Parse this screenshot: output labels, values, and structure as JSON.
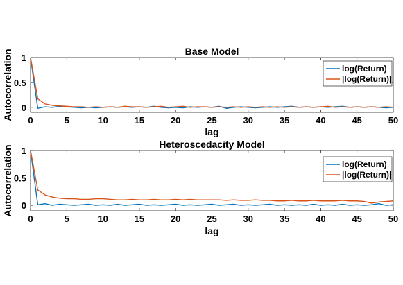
{
  "chart_data": [
    {
      "type": "line",
      "title": "Base Model",
      "xlabel": "lag",
      "ylabel": "Autocorrelation",
      "xlim": [
        0,
        50
      ],
      "ylim": [
        -0.1,
        1
      ],
      "xticks": [
        "0",
        "5",
        "10",
        "15",
        "20",
        "25",
        "30",
        "35",
        "40",
        "45",
        "50"
      ],
      "yticks": [
        "0",
        "0.5",
        "1"
      ],
      "grid": false,
      "legend_position": "top-right",
      "x": [
        0,
        1,
        2,
        3,
        4,
        5,
        6,
        7,
        8,
        9,
        10,
        11,
        12,
        13,
        14,
        15,
        16,
        17,
        18,
        19,
        20,
        21,
        22,
        23,
        24,
        25,
        26,
        27,
        28,
        29,
        30,
        31,
        32,
        33,
        34,
        35,
        36,
        37,
        38,
        39,
        40,
        41,
        42,
        43,
        44,
        45,
        46,
        47,
        48,
        49,
        50
      ],
      "series": [
        {
          "name": "log(Return)",
          "color": "#0072BD",
          "values": [
            1,
            -0.02,
            0.01,
            0.0,
            0.02,
            0.01,
            0.0,
            -0.01,
            0.0,
            -0.01,
            0.0,
            0.01,
            0.0,
            0.01,
            0.0,
            0.01,
            0.0,
            0.02,
            0.0,
            -0.01,
            0.0,
            -0.01,
            0.01,
            0.0,
            0.01,
            0.0,
            0.02,
            -0.02,
            0.0,
            0.01,
            0.0,
            -0.01,
            0.0,
            0.01,
            0.0,
            0.01,
            0.02,
            0.0,
            0.01,
            0.0,
            0.01,
            0.0,
            0.01,
            0.02,
            0.0,
            0.01,
            0.0,
            0.01,
            0.0,
            -0.01,
            0.0
          ]
        },
        {
          "name": "|log(Return)|",
          "color": "#D95319",
          "values": [
            1,
            0.17,
            0.07,
            0.04,
            0.03,
            0.02,
            0.01,
            0.01,
            0.0,
            0.01,
            0.0,
            0.01,
            0.0,
            0.02,
            0.01,
            0.01,
            0.0,
            0.01,
            0.02,
            0.0,
            0.01,
            0.02,
            0.0,
            0.01,
            0.01,
            0.0,
            0.01,
            0.0,
            0.01,
            0.0,
            0.01,
            0.0,
            0.01,
            0.0,
            0.01,
            0.0,
            0.01,
            0.0,
            0.01,
            0.0,
            0.01,
            0.02,
            0.0,
            0.01,
            0.0,
            0.01,
            0.0,
            0.01,
            0.0,
            0.01,
            0.0
          ]
        }
      ]
    },
    {
      "type": "line",
      "title": "Heteroscedacity Model",
      "xlabel": "lag",
      "ylabel": "Autocorrelation",
      "xlim": [
        0,
        50
      ],
      "ylim": [
        -0.1,
        1
      ],
      "xticks": [
        "0",
        "5",
        "10",
        "15",
        "20",
        "25",
        "30",
        "35",
        "40",
        "45",
        "50"
      ],
      "yticks": [
        "0",
        "0.5",
        "1"
      ],
      "grid": false,
      "legend_position": "top-right",
      "x": [
        0,
        1,
        2,
        3,
        4,
        5,
        6,
        7,
        8,
        9,
        10,
        11,
        12,
        13,
        14,
        15,
        16,
        17,
        18,
        19,
        20,
        21,
        22,
        23,
        24,
        25,
        26,
        27,
        28,
        29,
        30,
        31,
        32,
        33,
        34,
        35,
        36,
        37,
        38,
        39,
        40,
        41,
        42,
        43,
        44,
        45,
        46,
        47,
        48,
        49,
        50
      ],
      "series": [
        {
          "name": "log(Return)",
          "color": "#0072BD",
          "values": [
            1,
            0.01,
            0.03,
            0.0,
            0.02,
            0.01,
            0.0,
            0.01,
            0.02,
            0.0,
            0.01,
            0.0,
            0.02,
            0.0,
            0.01,
            0.02,
            0.0,
            0.01,
            0.0,
            0.01,
            0.02,
            0.0,
            0.01,
            0.0,
            0.01,
            0.02,
            0.0,
            0.01,
            0.02,
            0.0,
            0.01,
            0.0,
            0.01,
            0.02,
            0.0,
            0.01,
            0.0,
            0.01,
            0.0,
            0.02,
            0.0,
            0.01,
            0.0,
            0.02,
            0.0,
            0.01,
            0.0,
            0.01,
            0.03,
            0.0,
            0.01
          ]
        },
        {
          "name": "|log(Return)|",
          "color": "#D95319",
          "values": [
            1,
            0.28,
            0.19,
            0.15,
            0.13,
            0.12,
            0.12,
            0.11,
            0.11,
            0.12,
            0.12,
            0.11,
            0.1,
            0.1,
            0.11,
            0.1,
            0.1,
            0.11,
            0.1,
            0.1,
            0.11,
            0.1,
            0.11,
            0.1,
            0.1,
            0.1,
            0.1,
            0.09,
            0.1,
            0.09,
            0.09,
            0.1,
            0.09,
            0.09,
            0.08,
            0.08,
            0.09,
            0.08,
            0.08,
            0.09,
            0.08,
            0.08,
            0.08,
            0.09,
            0.08,
            0.08,
            0.07,
            0.04,
            0.06,
            0.07,
            0.08
          ]
        }
      ]
    }
  ]
}
